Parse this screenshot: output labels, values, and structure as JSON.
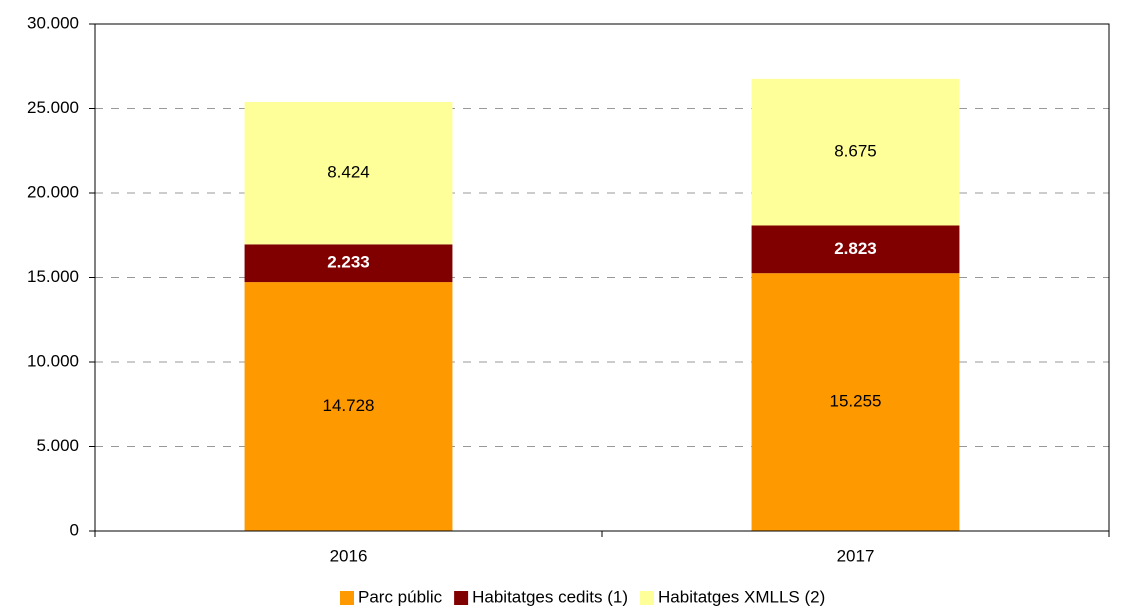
{
  "chart_data": {
    "type": "stacked_bar",
    "categories": [
      "2016",
      "2017"
    ],
    "series": [
      {
        "name": "Parc públic",
        "color": "#ff9900",
        "values": [
          14728,
          15255
        ],
        "value_labels": [
          "14.728",
          "15.255"
        ]
      },
      {
        "name": "Habitatges cedits (1)",
        "color": "#800000",
        "values": [
          2233,
          2823
        ],
        "value_labels": [
          "2.233",
          "2.823"
        ]
      },
      {
        "name": "Habitatges XMLLS (2)",
        "color": "#ffff99",
        "values": [
          8424,
          8675
        ],
        "value_labels": [
          "8.424",
          "8.675"
        ]
      }
    ],
    "ylim": [
      0,
      30000
    ],
    "yticks": [
      0,
      {
        "value": 5000,
        "label": "5.000"
      },
      {
        "value": 10000,
        "label": "10.000"
      },
      {
        "value": 15000,
        "label": "15.000"
      },
      {
        "value": 20000,
        "label": "20.000"
      },
      {
        "value": 25000,
        "label": "25.000"
      },
      {
        "value": 30000,
        "label": "30.000"
      }
    ],
    "grid": true,
    "legend": "bottom"
  }
}
